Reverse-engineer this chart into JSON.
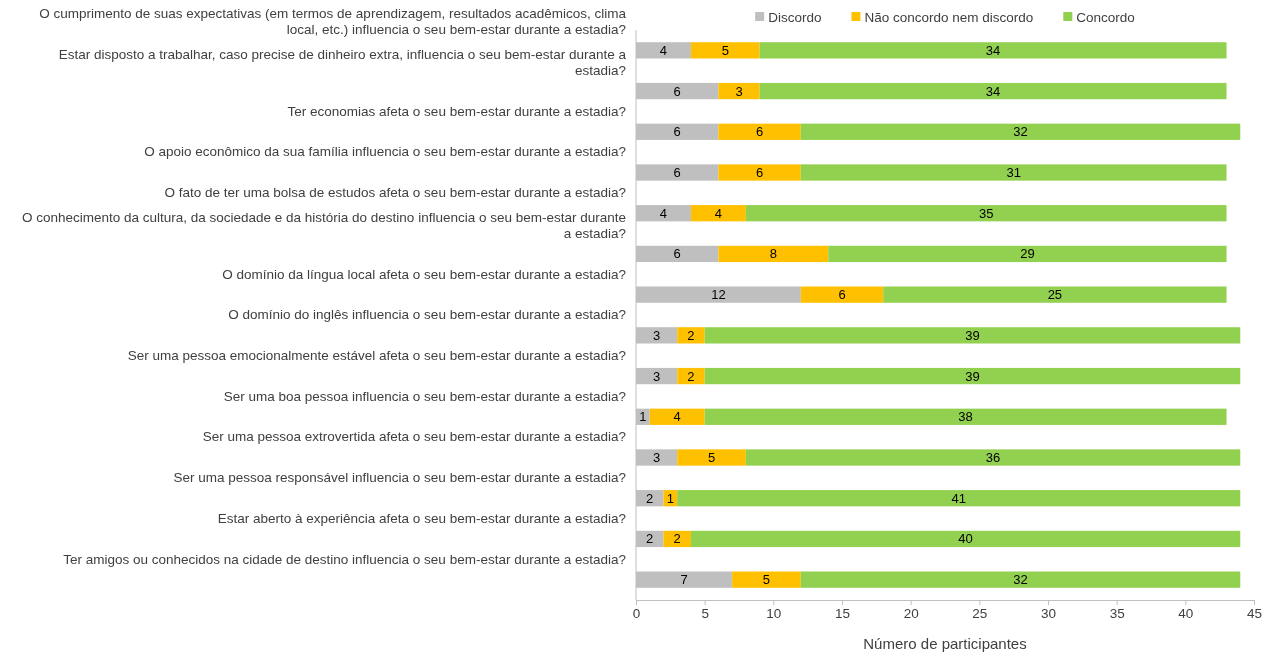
{
  "chart_data": {
    "type": "bar",
    "orientation": "horizontal",
    "stacked": true,
    "xlabel": "Número de participantes",
    "categories": [
      "O cumprimento de suas expectativas (em termos de aprendizagem, resultados acadêmicos, clima local, etc.) influencia o seu bem-estar durante a estadia?",
      "Estar disposto a trabalhar, caso precise de dinheiro extra, influencia o seu bem-estar durante a estadia?",
      "Ter economias afeta o seu bem-estar durante a estadia?",
      "O apoio econômico da sua família influencia o seu bem-estar durante a estadia?",
      "O fato de ter uma bolsa de estudos afeta o seu bem-estar durante a estadia?",
      "O conhecimento da cultura, da sociedade e da história do destino influencia o seu bem-estar durante a estadia?",
      "O domínio da língua local afeta o seu bem-estar durante a estadia?",
      "O domínio do inglês influencia o seu bem-estar durante a estadia?",
      "Ser uma pessoa emocionalmente estável afeta o seu bem-estar durante a estadia?",
      "Ser uma boa pessoa influencia o seu bem-estar durante a estadia?",
      "Ser uma pessoa extrovertida afeta o seu bem-estar durante a estadia?",
      "Ser uma pessoa responsável influencia o seu bem-estar durante a estadia?",
      "Estar aberto à experiência afeta o seu bem-estar durante a estadia?",
      "Ter amigos ou conhecidos na cidade de destino influencia o seu bem-estar durante a estadia?"
    ],
    "series": [
      {
        "name": "Discordo",
        "color": "#bfbfbf",
        "values": [
          4,
          6,
          6,
          6,
          4,
          6,
          12,
          3,
          3,
          1,
          3,
          2,
          2,
          7
        ]
      },
      {
        "name": "Não concordo nem discordo",
        "color": "#ffc000",
        "values": [
          5,
          3,
          6,
          6,
          4,
          8,
          6,
          2,
          2,
          4,
          5,
          1,
          2,
          5
        ]
      },
      {
        "name": "Concordo",
        "color": "#92d050",
        "values": [
          34,
          34,
          32,
          31,
          35,
          29,
          25,
          39,
          39,
          38,
          36,
          41,
          40,
          32
        ]
      }
    ],
    "xlim": [
      0,
      45
    ],
    "xticks": [
      0,
      5,
      10,
      15,
      20,
      25,
      30,
      35,
      40,
      45
    ],
    "data_labels": true,
    "legend": "top",
    "grid": false
  }
}
